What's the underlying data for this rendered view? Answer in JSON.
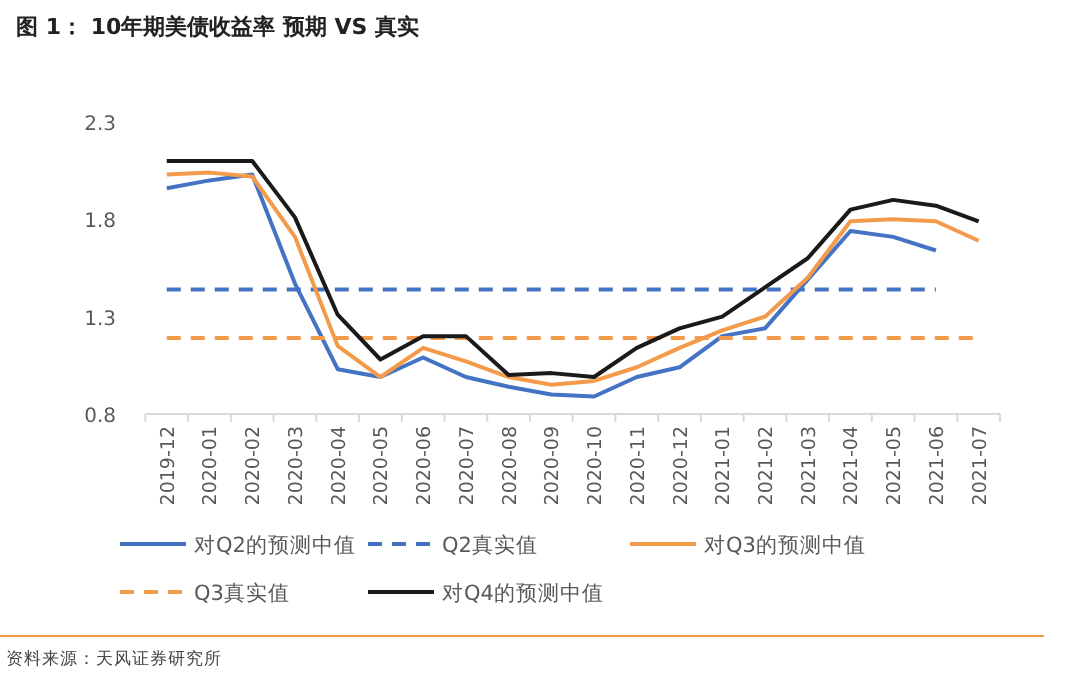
{
  "chart_data": {
    "type": "line",
    "title": "图 1：  10年期美债收益率 预期 VS 真实",
    "categories": [
      "2019-12",
      "2020-01",
      "2020-02",
      "2020-03",
      "2020-04",
      "2020-05",
      "2020-06",
      "2020-07",
      "2020-08",
      "2020-09",
      "2020-10",
      "2020-11",
      "2020-12",
      "2021-01",
      "2021-02",
      "2021-03",
      "2021-04",
      "2021-05",
      "2021-06",
      "2021-07"
    ],
    "series": [
      {
        "name": "对Q2的预测中值",
        "color": "#4472c4",
        "line_style": "solid",
        "values": [
          1.96,
          2.0,
          2.03,
          1.47,
          1.03,
          0.99,
          1.09,
          0.99,
          0.94,
          0.9,
          0.89,
          0.99,
          1.04,
          1.2,
          1.24,
          1.49,
          1.74,
          1.71,
          1.64,
          null
        ]
      },
      {
        "name": "Q2真实值",
        "color": "#4472c4",
        "line_style": "dashed",
        "values": [
          1.44,
          1.44,
          1.44,
          1.44,
          1.44,
          1.44,
          1.44,
          1.44,
          1.44,
          1.44,
          1.44,
          1.44,
          1.44,
          1.44,
          1.44,
          1.44,
          1.44,
          1.44,
          1.44,
          null
        ]
      },
      {
        "name": "对Q3的预测中值",
        "color": "#f39a4b",
        "line_style": "solid",
        "values": [
          2.03,
          2.04,
          2.02,
          1.71,
          1.15,
          0.99,
          1.14,
          1.07,
          0.99,
          0.95,
          0.97,
          1.04,
          1.14,
          1.23,
          1.3,
          1.5,
          1.79,
          1.8,
          1.79,
          1.69
        ]
      },
      {
        "name": "Q3真实值",
        "color": "#f39a4b",
        "line_style": "dashed",
        "values": [
          1.19,
          1.19,
          1.19,
          1.19,
          1.19,
          1.19,
          1.19,
          1.19,
          1.19,
          1.19,
          1.19,
          1.19,
          1.19,
          1.19,
          1.19,
          1.19,
          1.19,
          1.19,
          1.19,
          1.19
        ]
      },
      {
        "name": "对Q4的预测中值",
        "color": "#1a1a1a",
        "line_style": "solid",
        "values": [
          2.1,
          2.1,
          2.1,
          1.81,
          1.31,
          1.08,
          1.2,
          1.2,
          1.0,
          1.01,
          0.99,
          1.14,
          1.24,
          1.3,
          1.45,
          1.6,
          1.85,
          1.9,
          1.87,
          1.79
        ]
      }
    ],
    "ylim": [
      0.8,
      2.3
    ],
    "yticks": [
      0.8,
      1.3,
      1.8,
      2.3
    ],
    "grid": false,
    "legend": "bottom",
    "marker": "none",
    "annotations": [
      "资料来源：天风证券研究所"
    ]
  }
}
